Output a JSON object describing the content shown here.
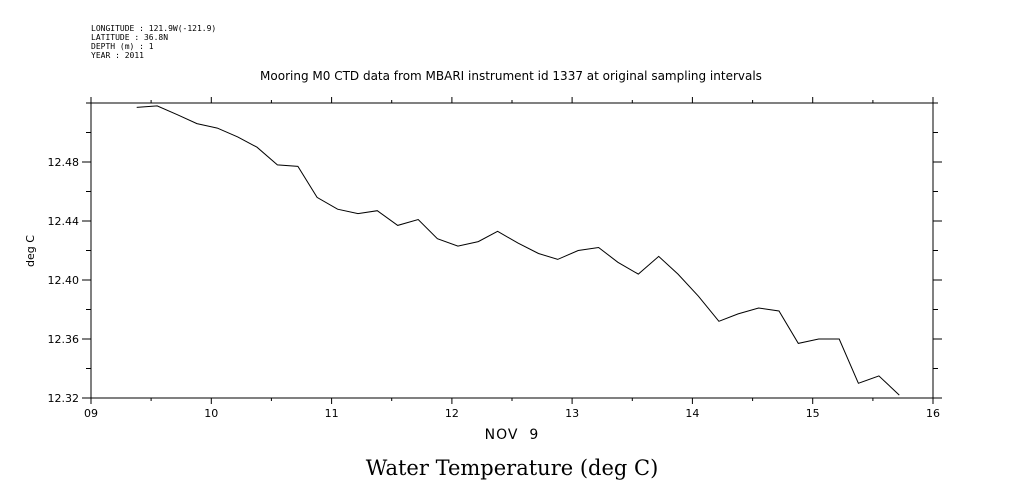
{
  "header": {
    "longitude": "LONGITUDE : 121.9W(-121.9)",
    "latitude": "LATITUDE : 36.8N",
    "depth": "DEPTH (m) : 1",
    "year": "YEAR : 2011"
  },
  "chart_data": {
    "type": "line",
    "title": "Mooring M0 CTD data from MBARI instrument id 1337 at original sampling intervals",
    "xlabel": "NOV  9",
    "ylabel": "deg C",
    "caption": "Water Temperature (deg C)",
    "xlim": [
      9,
      16
    ],
    "ylim": [
      12.32,
      12.52
    ],
    "x_ticks": [
      9,
      10,
      11,
      12,
      13,
      14,
      15,
      16
    ],
    "x_tick_labels": [
      "09",
      "10",
      "11",
      "12",
      "13",
      "14",
      "15",
      "16"
    ],
    "y_ticks": [
      12.32,
      12.36,
      12.4,
      12.44,
      12.48
    ],
    "y_tick_labels": [
      "12.32",
      "12.36",
      "12.40",
      "12.44",
      "12.48"
    ],
    "series": [
      {
        "x": [
          9.38,
          9.55,
          9.72,
          9.88,
          10.05,
          10.22,
          10.38,
          10.55,
          10.72,
          10.88,
          11.05,
          11.22,
          11.38,
          11.55,
          11.72,
          11.88,
          12.05,
          12.22,
          12.38,
          12.55,
          12.72,
          12.88,
          13.05,
          13.22,
          13.38,
          13.55,
          13.72,
          13.88,
          14.05,
          14.22,
          14.38,
          14.55,
          14.72,
          14.88,
          15.05,
          15.22,
          15.38,
          15.55,
          15.72
        ],
        "y": [
          12.517,
          12.518,
          12.512,
          12.506,
          12.503,
          12.497,
          12.49,
          12.478,
          12.477,
          12.456,
          12.448,
          12.445,
          12.447,
          12.437,
          12.441,
          12.428,
          12.423,
          12.426,
          12.433,
          12.425,
          12.418,
          12.414,
          12.42,
          12.422,
          12.412,
          12.404,
          12.416,
          12.404,
          12.389,
          12.372,
          12.377,
          12.381,
          12.379,
          12.357,
          12.36,
          12.36,
          12.33,
          12.335,
          12.322
        ]
      }
    ]
  }
}
